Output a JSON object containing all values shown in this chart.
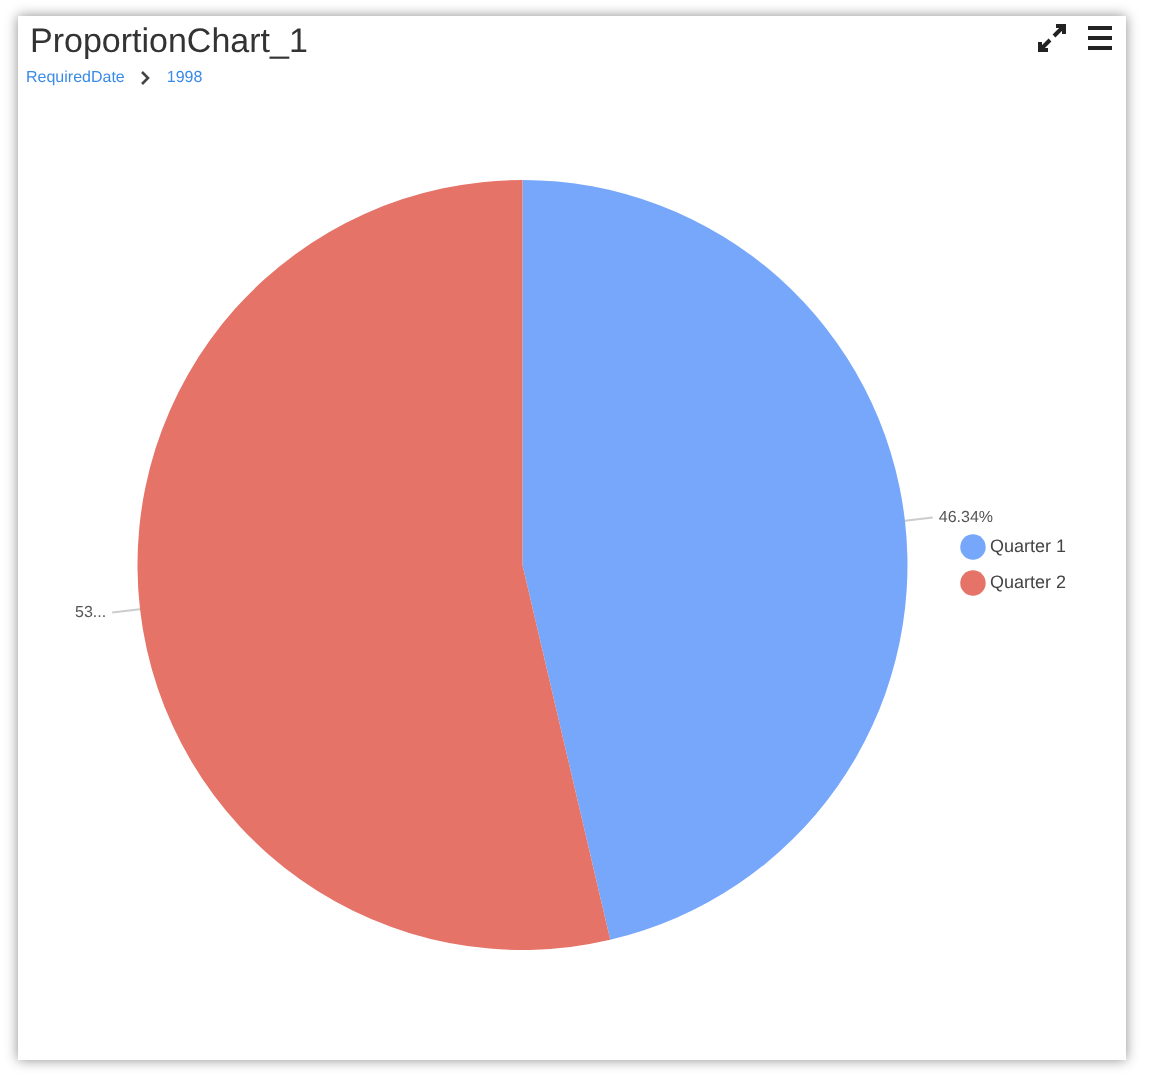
{
  "chart_data": {
    "type": "pie",
    "title": "ProportionChart_1",
    "subtitle": "RequiredDate",
    "annotations": [
      "1998"
    ],
    "categories": [
      "Quarter 1",
      "Quarter 2"
    ],
    "values": [
      46.34,
      53.66
    ],
    "colors": [
      "#76a7fa",
      "#e57368"
    ],
    "value_labels": [
      "46.34%",
      "53..."
    ],
    "legend": "right"
  }
}
